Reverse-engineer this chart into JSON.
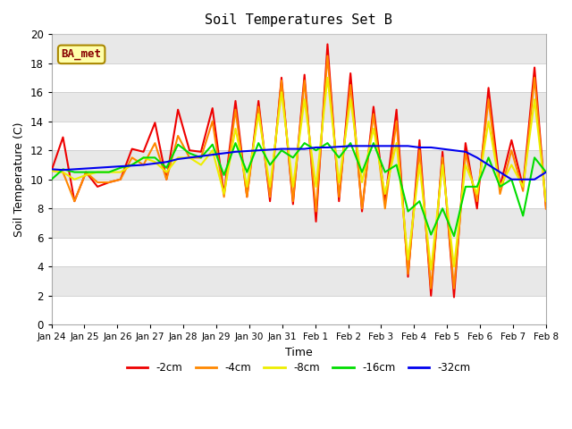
{
  "title": "Soil Temperatures Set B",
  "xlabel": "Time",
  "ylabel": "Soil Temperature (C)",
  "annotation": "BA_met",
  "xlim": [
    0,
    15
  ],
  "ylim": [
    0,
    20
  ],
  "yticks": [
    0,
    2,
    4,
    6,
    8,
    10,
    12,
    14,
    16,
    18,
    20
  ],
  "xtick_labels": [
    "Jan 24",
    "Jan 25",
    "Jan 26",
    "Jan 27",
    "Jan 28",
    "Jan 29",
    "Jan 30",
    "Jan 31",
    "Feb 1",
    "Feb 2",
    "Feb 3",
    "Feb 4",
    "Feb 5",
    "Feb 6",
    "Feb 7",
    "Feb 8"
  ],
  "bg_color": "#e8e8e8",
  "stripe_color": "#ffffff",
  "line_colors": {
    "-2cm": "#ee0000",
    "-4cm": "#ff8800",
    "-8cm": "#eeee00",
    "-16cm": "#00dd00",
    "-32cm": "#0000ee"
  },
  "series": {
    "-2cm": [
      10.6,
      12.9,
      8.5,
      10.5,
      9.5,
      9.8,
      10.0,
      12.1,
      11.9,
      13.9,
      10.0,
      14.8,
      12.0,
      11.9,
      14.9,
      9.0,
      15.4,
      8.8,
      15.4,
      8.5,
      17.0,
      8.3,
      17.2,
      7.1,
      19.3,
      8.5,
      17.3,
      7.8,
      15.0,
      8.5,
      14.8,
      3.3,
      12.7,
      2.0,
      11.9,
      1.9,
      12.5,
      8.0,
      16.3,
      9.5,
      12.7,
      9.5,
      17.7,
      8.0
    ],
    "-4cm": [
      10.6,
      10.5,
      8.5,
      10.5,
      9.8,
      9.8,
      10.0,
      11.5,
      11.0,
      12.5,
      10.0,
      13.0,
      11.5,
      11.5,
      14.0,
      8.8,
      14.8,
      8.8,
      15.0,
      8.8,
      16.8,
      8.5,
      16.8,
      7.8,
      18.5,
      8.8,
      16.5,
      8.0,
      14.5,
      8.0,
      14.0,
      3.5,
      12.0,
      2.5,
      11.5,
      2.5,
      11.8,
      8.5,
      15.5,
      9.0,
      12.0,
      9.2,
      17.0,
      8.0
    ],
    "-8cm": [
      10.6,
      10.5,
      10.0,
      10.3,
      10.5,
      10.5,
      10.5,
      11.0,
      11.5,
      11.2,
      10.5,
      11.5,
      11.5,
      11.0,
      12.0,
      9.0,
      13.5,
      9.5,
      14.5,
      9.5,
      16.0,
      9.5,
      15.5,
      9.5,
      17.0,
      9.8,
      15.5,
      9.8,
      13.5,
      9.0,
      12.5,
      4.5,
      11.0,
      3.8,
      11.0,
      4.0,
      11.0,
      9.0,
      14.0,
      9.5,
      11.0,
      9.5,
      15.5,
      8.5
    ],
    "-16cm": [
      10.0,
      10.7,
      10.5,
      10.5,
      10.5,
      10.5,
      10.8,
      11.0,
      11.5,
      11.5,
      10.8,
      12.4,
      11.8,
      11.5,
      12.4,
      10.3,
      12.5,
      10.5,
      12.5,
      11.0,
      12.0,
      11.5,
      12.5,
      12.0,
      12.5,
      11.5,
      12.5,
      10.5,
      12.5,
      10.5,
      11.0,
      7.8,
      8.5,
      6.2,
      8.0,
      6.1,
      9.5,
      9.5,
      11.5,
      9.5,
      10.0,
      7.5,
      11.5,
      10.5
    ],
    "-32cm": [
      10.7,
      10.65,
      10.7,
      10.75,
      10.8,
      10.85,
      10.9,
      10.95,
      11.0,
      11.1,
      11.2,
      11.4,
      11.5,
      11.6,
      11.7,
      11.8,
      11.9,
      11.95,
      12.0,
      12.05,
      12.1,
      12.1,
      12.1,
      12.2,
      12.2,
      12.25,
      12.3,
      12.3,
      12.3,
      12.3,
      12.3,
      12.3,
      12.2,
      12.2,
      12.1,
      12.0,
      11.9,
      11.5,
      11.0,
      10.5,
      10.0,
      10.0,
      10.0,
      10.5
    ]
  }
}
